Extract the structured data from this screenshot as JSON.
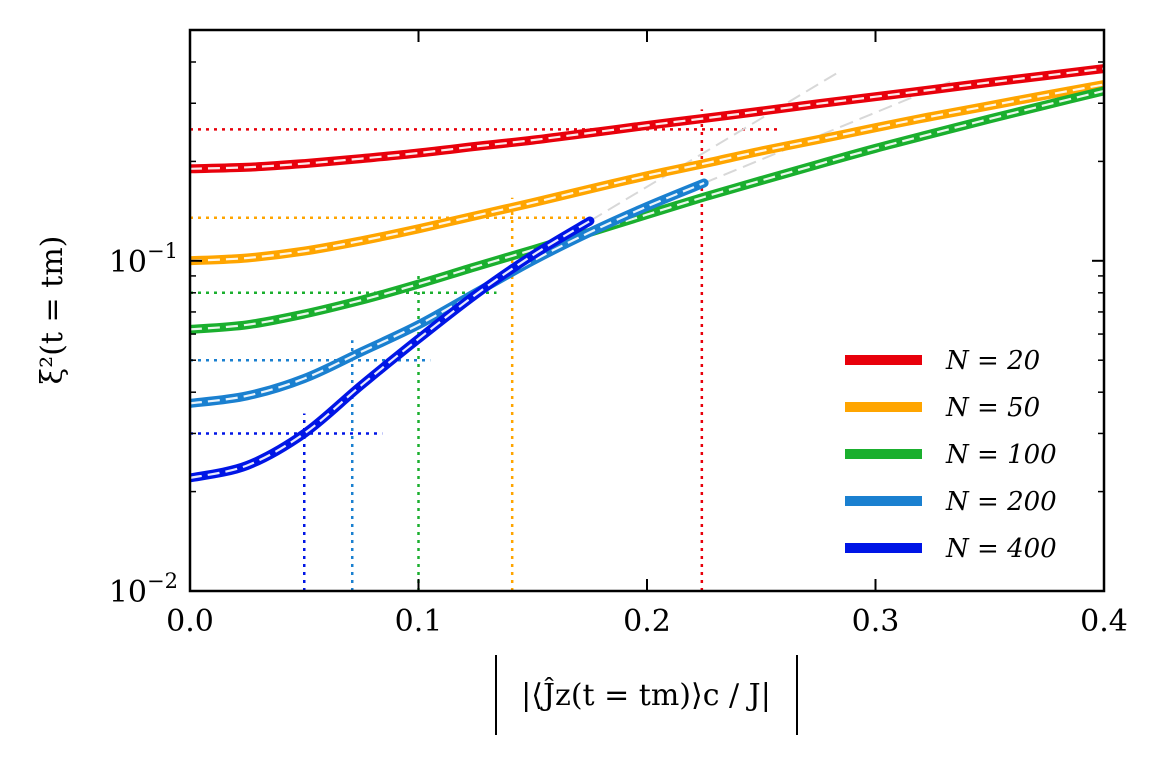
{
  "chart_data": {
    "type": "line",
    "title": "",
    "xlabel": "|⟨Ĵz(t = tm)⟩c / J|",
    "ylabel": "ξ²(t = tm)",
    "xlim": [
      0.0,
      0.4
    ],
    "ylim": [
      0.01,
      0.5
    ],
    "yscale": "log",
    "grid": false,
    "legend_position": "lower-right",
    "x_ticks": [
      0.0,
      0.1,
      0.2,
      0.3,
      0.4
    ],
    "x_tick_labels": [
      "0.0",
      "0.1",
      "0.2",
      "0.3",
      "0.4"
    ],
    "y_ticks": [
      0.01,
      0.1
    ],
    "y_tick_labels": [
      {
        "base": "10",
        "exp": "−2"
      },
      {
        "base": "10",
        "exp": "−1"
      }
    ],
    "series": [
      {
        "name": "N = 20",
        "color": "#e8000b",
        "x": [
          0.0,
          0.025,
          0.05,
          0.075,
          0.1,
          0.125,
          0.15,
          0.175,
          0.2,
          0.225,
          0.25,
          0.275,
          0.3,
          0.325,
          0.35,
          0.375,
          0.4
        ],
        "y": [
          0.19,
          0.192,
          0.197,
          0.204,
          0.212,
          0.222,
          0.232,
          0.244,
          0.257,
          0.27,
          0.284,
          0.299,
          0.314,
          0.33,
          0.347,
          0.364,
          0.382
        ],
        "marker_x": 0.224,
        "marker_y": 0.25
      },
      {
        "name": "N = 50",
        "color": "#ffa500",
        "x": [
          0.0,
          0.025,
          0.05,
          0.075,
          0.1,
          0.125,
          0.15,
          0.175,
          0.2,
          0.225,
          0.25,
          0.275,
          0.3,
          0.325,
          0.35,
          0.375,
          0.4
        ],
        "y": [
          0.1,
          0.102,
          0.107,
          0.115,
          0.125,
          0.137,
          0.15,
          0.165,
          0.181,
          0.197,
          0.215,
          0.233,
          0.253,
          0.274,
          0.295,
          0.318,
          0.342
        ],
        "marker_x": 0.141,
        "marker_y": 0.135
      },
      {
        "name": "N = 100",
        "color": "#1aaf2e",
        "x": [
          0.0,
          0.025,
          0.05,
          0.075,
          0.1,
          0.125,
          0.15,
          0.175,
          0.2,
          0.225,
          0.25,
          0.275,
          0.3,
          0.325,
          0.35,
          0.375,
          0.4
        ],
        "y": [
          0.062,
          0.064,
          0.069,
          0.076,
          0.085,
          0.096,
          0.108,
          0.122,
          0.138,
          0.156,
          0.175,
          0.196,
          0.219,
          0.243,
          0.269,
          0.297,
          0.327
        ],
        "marker_x": 0.1,
        "marker_y": 0.08
      },
      {
        "name": "N = 200",
        "color": "#1a80d0",
        "x": [
          0.0,
          0.025,
          0.05,
          0.075,
          0.1,
          0.125,
          0.15,
          0.175,
          0.2,
          0.225
        ],
        "y": [
          0.037,
          0.039,
          0.044,
          0.053,
          0.064,
          0.08,
          0.1,
          0.122,
          0.146,
          0.172
        ],
        "marker_x": 0.071,
        "marker_y": 0.05
      },
      {
        "name": "N = 400",
        "color": "#0015e6",
        "x": [
          0.0,
          0.025,
          0.05,
          0.075,
          0.1,
          0.125,
          0.15,
          0.175
        ],
        "y": [
          0.022,
          0.024,
          0.03,
          0.042,
          0.058,
          0.079,
          0.104,
          0.132
        ],
        "marker_x": 0.05,
        "marker_y": 0.03
      }
    ]
  }
}
